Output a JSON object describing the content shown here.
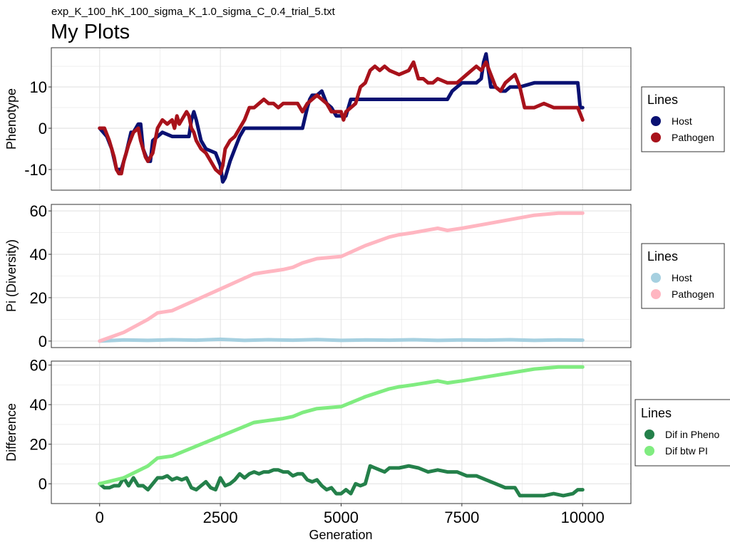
{
  "chart_data": {
    "subtitle": "exp_K_100_hK_100_sigma_K_1.0_sigma_C_0.4_trial_5.txt",
    "title": "My Plots",
    "xlabel": "Generation",
    "xlim": [
      -1000,
      11000
    ],
    "xticks": [
      0,
      2500,
      5000,
      7500,
      10000
    ],
    "xtick_labels": [
      "0",
      "2500",
      "5000",
      "7500",
      "10000"
    ],
    "panels": [
      {
        "type": "line",
        "ylabel": "Phenotype",
        "ylim": [
          -15,
          19.5
        ],
        "yticks": [
          -10,
          0,
          10
        ],
        "ytick_labels": [
          "-10",
          "0",
          "10"
        ],
        "legend_title": "Lines",
        "series": [
          {
            "name": "Host",
            "color": "#0a1172",
            "x": [
              0,
              150,
              250,
              350,
              400,
              450,
              550,
              650,
              700,
              800,
              850,
              900,
              1000,
              1050,
              1100,
              1300,
              1500,
              1550,
              1700,
              1800,
              1850,
              1900,
              1950,
              2000,
              2100,
              2200,
              2400,
              2500,
              2550,
              2600,
              2700,
              2800,
              2900,
              3000,
              3100,
              3200,
              3300,
              3600,
              3700,
              3800,
              3900,
              4000,
              4100,
              4200,
              4300,
              4350,
              4400,
              4500,
              4600,
              4700,
              4800,
              4900,
              5000,
              5050,
              5100,
              5200,
              5300,
              5400,
              5500,
              5550,
              5600,
              5700,
              6000,
              6500,
              7000,
              7200,
              7300,
              7500,
              7600,
              7700,
              7800,
              7900,
              7950,
              8000,
              8050,
              8100,
              8200,
              8300,
              8400,
              8500,
              8600,
              8700,
              9000,
              9300,
              9600,
              9900,
              9950,
              10000
            ],
            "y": [
              0,
              -2,
              -5,
              -10,
              -10,
              -10,
              -6,
              -1,
              -1,
              1,
              1,
              -5,
              -8,
              -8,
              -3,
              -1,
              -2,
              -2,
              -2,
              -2,
              -2,
              2,
              4,
              2,
              -3,
              -5,
              -6,
              -9,
              -13,
              -12,
              -8,
              -5,
              -2,
              0,
              0,
              0,
              0,
              0,
              0,
              0,
              0,
              0,
              0,
              0,
              5,
              7,
              8,
              8,
              9,
              6,
              5,
              3,
              3,
              3,
              3,
              7,
              7,
              7,
              7,
              7,
              7,
              7,
              7,
              7,
              7,
              7,
              9,
              11,
              11,
              11,
              11,
              12,
              16,
              18,
              14,
              10,
              10,
              9,
              9,
              10,
              10,
              10,
              11,
              11,
              11,
              11,
              5,
              5
            ]
          },
          {
            "name": "Pathogen",
            "color": "#a8121b",
            "x": [
              0,
              100,
              200,
              300,
              350,
              400,
              450,
              500,
              600,
              700,
              800,
              850,
              900,
              950,
              1000,
              1100,
              1200,
              1300,
              1400,
              1500,
              1550,
              1600,
              1650,
              1700,
              1800,
              1850,
              1900,
              1950,
              2000,
              2100,
              2200,
              2300,
              2400,
              2500,
              2550,
              2600,
              2700,
              2800,
              2900,
              3000,
              3100,
              3200,
              3300,
              3400,
              3500,
              3600,
              3700,
              3800,
              3900,
              4000,
              4100,
              4200,
              4300,
              4400,
              4500,
              4600,
              4700,
              4800,
              4900,
              5000,
              5050,
              5100,
              5200,
              5300,
              5400,
              5500,
              5600,
              5700,
              5800,
              5900,
              6000,
              6200,
              6400,
              6500,
              6600,
              6700,
              6800,
              6900,
              7000,
              7200,
              7400,
              7500,
              7600,
              7700,
              7800,
              7900,
              8000,
              8100,
              8200,
              8300,
              8400,
              8500,
              8600,
              8700,
              8800,
              8900,
              9000,
              9200,
              9400,
              9600,
              9700,
              9800,
              9900,
              10000
            ],
            "y": [
              0,
              0,
              -3,
              -7,
              -10,
              -11,
              -11,
              -8,
              -4,
              -1,
              0,
              -3,
              -5,
              -7,
              -8,
              -6,
              0,
              2,
              1,
              2,
              0,
              3,
              1,
              2,
              4,
              3,
              0,
              -1,
              -3,
              -5,
              -6,
              -8,
              -10,
              -11,
              -9,
              -5,
              -3,
              -2,
              0,
              2,
              5,
              5,
              6,
              7,
              6,
              6,
              5,
              6,
              6,
              6,
              6,
              4,
              6,
              7,
              8,
              7,
              6,
              4,
              4,
              4,
              2,
              4,
              5,
              6,
              10,
              11,
              14,
              15,
              14,
              15,
              14,
              13,
              14,
              16,
              12,
              12,
              11,
              11,
              12,
              11,
              11,
              12,
              13,
              14,
              15,
              14,
              16,
              13,
              10,
              9,
              11,
              12,
              13,
              10,
              5,
              5,
              5,
              6,
              5,
              5,
              5,
              5,
              5,
              2
            ]
          }
        ]
      },
      {
        "type": "line",
        "ylabel": "Pi (Diversity)",
        "ylim": [
          -3,
          63
        ],
        "yticks": [
          0,
          20,
          40,
          60
        ],
        "ytick_labels": [
          "0",
          "20",
          "40",
          "60"
        ],
        "legend_title": "Lines",
        "series": [
          {
            "name": "Host",
            "color": "#a6d0e0",
            "x": [
              0,
              500,
              1000,
              1500,
              2000,
              2500,
              3000,
              3500,
              4000,
              4500,
              5000,
              5500,
              6000,
              6500,
              7000,
              7500,
              8000,
              8500,
              9000,
              9500,
              10000
            ],
            "y": [
              0,
              0.5,
              0.3,
              0.6,
              0.4,
              0.8,
              0.3,
              0.6,
              0.4,
              0.7,
              0.3,
              0.5,
              0.4,
              0.6,
              0.3,
              0.5,
              0.4,
              0.6,
              0.3,
              0.5,
              0.4
            ]
          },
          {
            "name": "Pathogen",
            "color": "#ffb6c1",
            "x": [
              0,
              500,
              1000,
              1200,
              1500,
              1700,
              2000,
              2500,
              3000,
              3200,
              3500,
              3800,
              4000,
              4200,
              4500,
              5000,
              5500,
              6000,
              6200,
              6500,
              7000,
              7200,
              7500,
              8000,
              8500,
              9000,
              9500,
              10000
            ],
            "y": [
              0,
              4,
              10,
              13,
              14,
              16,
              19,
              24,
              29,
              31,
              32,
              33,
              34,
              36,
              38,
              39,
              44,
              48,
              49,
              50,
              52,
              51,
              52,
              54,
              56,
              58,
              59,
              59
            ]
          }
        ]
      },
      {
        "type": "line",
        "ylabel": "Difference",
        "ylim": [
          -10,
          62
        ],
        "yticks": [
          0,
          20,
          40,
          60
        ],
        "ytick_labels": [
          "0",
          "20",
          "40",
          "60"
        ],
        "legend_title": "Lines",
        "series": [
          {
            "name": "Dif in Pheno",
            "color": "#24804a",
            "x": [
              0,
              100,
              200,
              300,
              400,
              500,
              600,
              700,
              800,
              900,
              1000,
              1100,
              1200,
              1300,
              1400,
              1500,
              1600,
              1700,
              1800,
              1900,
              2000,
              2100,
              2200,
              2300,
              2400,
              2500,
              2600,
              2700,
              2800,
              2900,
              3000,
              3100,
              3200,
              3300,
              3400,
              3500,
              3600,
              3700,
              3800,
              3900,
              4000,
              4100,
              4200,
              4300,
              4400,
              4500,
              4600,
              4700,
              4800,
              4900,
              5000,
              5100,
              5200,
              5300,
              5400,
              5500,
              5600,
              5700,
              5800,
              5900,
              6000,
              6200,
              6400,
              6600,
              6800,
              7000,
              7200,
              7400,
              7600,
              7800,
              8000,
              8200,
              8400,
              8600,
              8700,
              8800,
              9000,
              9200,
              9400,
              9600,
              9800,
              9900,
              10000
            ],
            "y": [
              0,
              -2,
              -2,
              -1,
              -1,
              3,
              -1,
              3,
              -1,
              -1,
              -3,
              0,
              3,
              3,
              4,
              2,
              3,
              2,
              3,
              -2,
              -3,
              -1,
              1,
              -2,
              -3,
              3,
              -1,
              0,
              2,
              5,
              3,
              5,
              6,
              5,
              6,
              6,
              7,
              7,
              6,
              6,
              4,
              5,
              5,
              2,
              1,
              2,
              -1,
              -3,
              -2,
              -5,
              -5,
              -3,
              -5,
              0,
              -1,
              0,
              9,
              8,
              7,
              6,
              8,
              8,
              9,
              8,
              6,
              7,
              6,
              6,
              4,
              4,
              2,
              0,
              -2,
              -2,
              -6,
              -6,
              -6,
              -6,
              -5,
              -6,
              -5,
              -3,
              -3
            ]
          },
          {
            "name": "Dif btw PI",
            "color": "#80ec80",
            "x": [
              0,
              500,
              1000,
              1200,
              1500,
              1700,
              2000,
              2500,
              3000,
              3200,
              3500,
              3800,
              4000,
              4200,
              4500,
              5000,
              5500,
              6000,
              6200,
              6500,
              7000,
              7200,
              7500,
              8000,
              8500,
              9000,
              9500,
              10000
            ],
            "y": [
              0,
              3,
              9,
              13,
              14,
              16,
              19,
              24,
              29,
              31,
              32,
              33,
              34,
              36,
              38,
              39,
              44,
              48,
              49,
              50,
              52,
              51,
              52,
              54,
              56,
              58,
              59,
              59
            ]
          }
        ]
      }
    ]
  }
}
